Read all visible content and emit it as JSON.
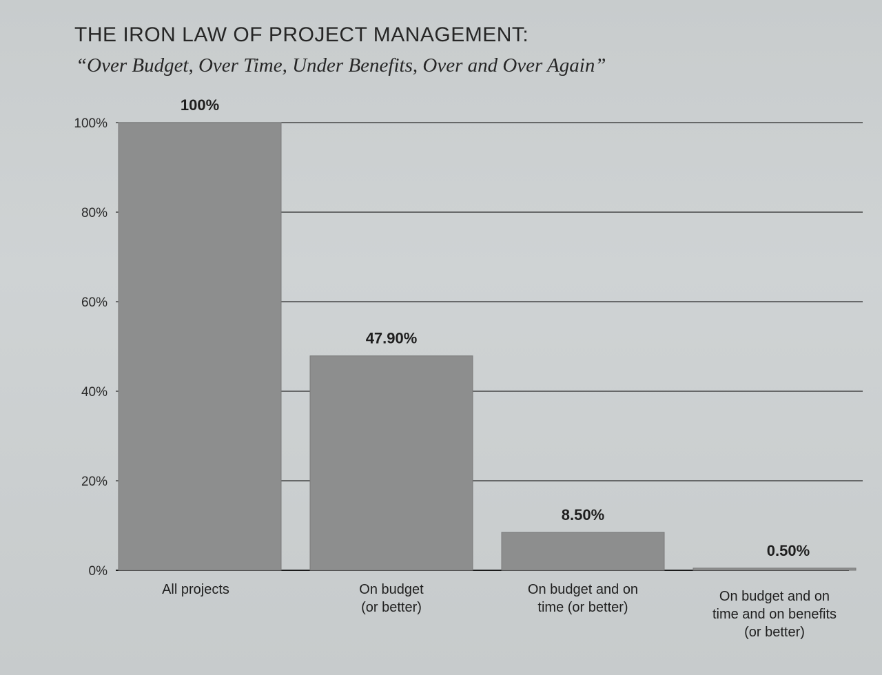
{
  "chart_data": {
    "type": "bar",
    "title": "THE IRON LAW OF PROJECT MANAGEMENT:",
    "subtitle": "“Over Budget, Over Time, Under Benefits, Over and Over Again”",
    "categories": [
      [
        "All projects"
      ],
      [
        "On budget",
        "(or better)"
      ],
      [
        "On budget and on",
        "time (or better)"
      ],
      [
        "On budget and on",
        "time and on benefits",
        "(or better)"
      ]
    ],
    "values": [
      100,
      47.9,
      8.5,
      0.5
    ],
    "value_labels": [
      "100%",
      "47.90%",
      "8.50%",
      "0.50%"
    ],
    "ylim": [
      0,
      100
    ],
    "yticks": [
      0,
      20,
      40,
      60,
      80,
      100
    ],
    "ytick_labels": [
      "0%",
      "20%",
      "40%",
      "60%",
      "80%",
      "100%"
    ],
    "xlabel": "",
    "ylabel": "",
    "grid": true,
    "legend": "none",
    "bar_color": "#8d8e8e"
  }
}
